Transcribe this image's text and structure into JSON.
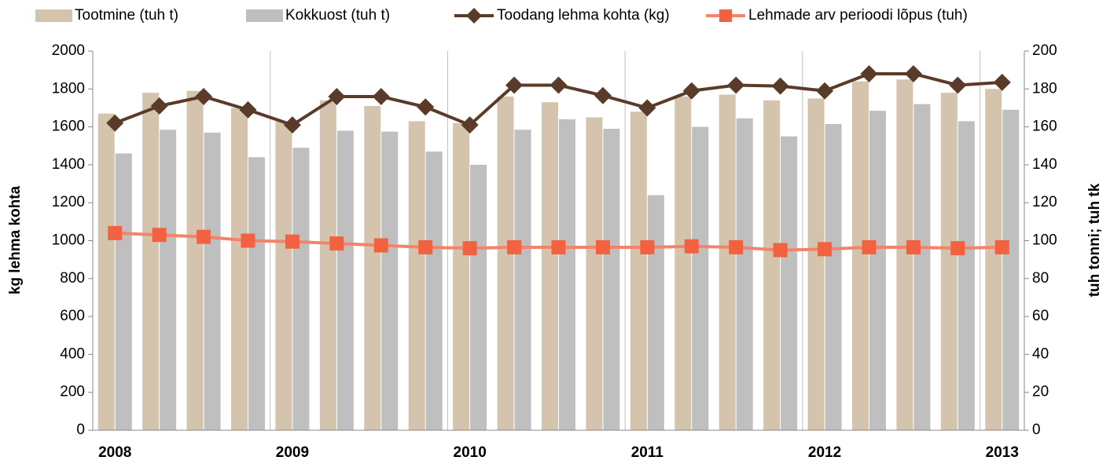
{
  "chart_data": {
    "type": "bar-line",
    "categories": [
      "2008",
      null,
      null,
      null,
      "2009",
      null,
      null,
      null,
      "2010",
      null,
      null,
      null,
      "2011",
      null,
      null,
      null,
      "2012",
      null,
      null,
      null,
      "2013"
    ],
    "ylabel": "kg lehma kohta",
    "y2label": "tuh tonni; tuh tk",
    "ylim": [
      0,
      2000
    ],
    "yticks": [
      0,
      200,
      400,
      600,
      800,
      1000,
      1200,
      1400,
      1600,
      1800,
      2000
    ],
    "y2lim": [
      0,
      200
    ],
    "y2ticks": [
      0,
      20,
      40,
      60,
      80,
      100,
      120,
      140,
      160,
      180,
      200
    ],
    "series": [
      {
        "name": "Tootmine (tuh t)",
        "kind": "bar",
        "axis": "y2",
        "color": "#d5c4ad",
        "values": [
          167,
          178,
          179,
          170,
          163,
          174,
          171,
          163,
          162,
          176,
          173,
          165,
          168,
          176,
          177,
          174,
          175,
          184,
          185,
          178,
          180
        ]
      },
      {
        "name": "Kokkuost (tuh t)",
        "kind": "bar",
        "axis": "y2",
        "color": "#bfbfbf",
        "values": [
          146,
          158.5,
          157,
          144,
          149,
          158,
          157.5,
          147,
          140,
          158.5,
          164,
          159,
          124,
          160,
          164.5,
          155,
          161.5,
          168.5,
          172,
          163,
          169
        ]
      },
      {
        "name": "Toodang lehma kohta (kg)",
        "kind": "line",
        "marker": "diamond",
        "color": "#5a3a29",
        "values": [
          1620,
          1710,
          1760,
          1690,
          1610,
          1760,
          1760,
          1705,
          1610,
          1820,
          1820,
          1765,
          1700,
          1790,
          1820,
          1815,
          1790,
          1880,
          1880,
          1820,
          1835
        ]
      },
      {
        "name": "Lehmade arv perioodi lõpus (tuh)",
        "kind": "line",
        "marker": "square",
        "axis": "y2",
        "color": "#f26140",
        "values": [
          104,
          103,
          102,
          100,
          99.5,
          98.5,
          97.5,
          96.5,
          96,
          96.5,
          96.5,
          96.5,
          96.5,
          97,
          96.5,
          95,
          95.5,
          96.5,
          96.5,
          96,
          96.5
        ]
      }
    ]
  }
}
